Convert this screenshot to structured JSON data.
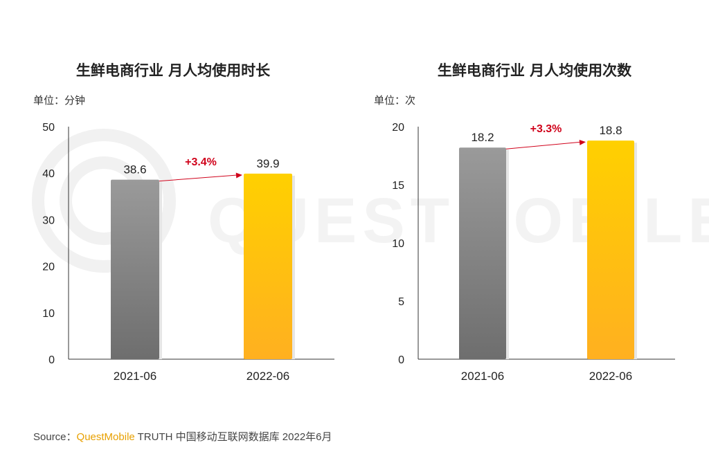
{
  "chart_data": [
    {
      "type": "bar",
      "title": "生鲜电商行业 月人均使用时长",
      "unit": "单位：分钟",
      "categories": [
        "2021-06",
        "2022-06"
      ],
      "values": [
        38.6,
        39.9
      ],
      "value_labels": [
        "38.6",
        "39.9"
      ],
      "growth_label": "+3.4%",
      "ylim": [
        0,
        50
      ],
      "yticks": [
        0,
        10,
        20,
        30,
        40,
        50
      ],
      "bar_colors": [
        "#8c8c8c",
        "#ffc000"
      ],
      "grid": false
    },
    {
      "type": "bar",
      "title": "生鲜电商行业 月人均使用次数",
      "unit": "单位：次",
      "categories": [
        "2021-06",
        "2022-06"
      ],
      "values": [
        18.2,
        18.8
      ],
      "value_labels": [
        "18.2",
        "18.8"
      ],
      "growth_label": "+3.3%",
      "ylim": [
        0,
        20
      ],
      "yticks": [
        0,
        5,
        10,
        15,
        20
      ],
      "bar_colors": [
        "#8c8c8c",
        "#ffc000"
      ],
      "grid": false
    }
  ],
  "source": {
    "prefix": "Source：",
    "brand": "QuestMobile",
    "rest": " TRUTH 中国移动互联网数据库 2022年6月"
  },
  "watermark": "QUESTMOBILE",
  "colors": {
    "growth": "#d0021b",
    "axis": "#333333",
    "accent": "#ffc000"
  }
}
